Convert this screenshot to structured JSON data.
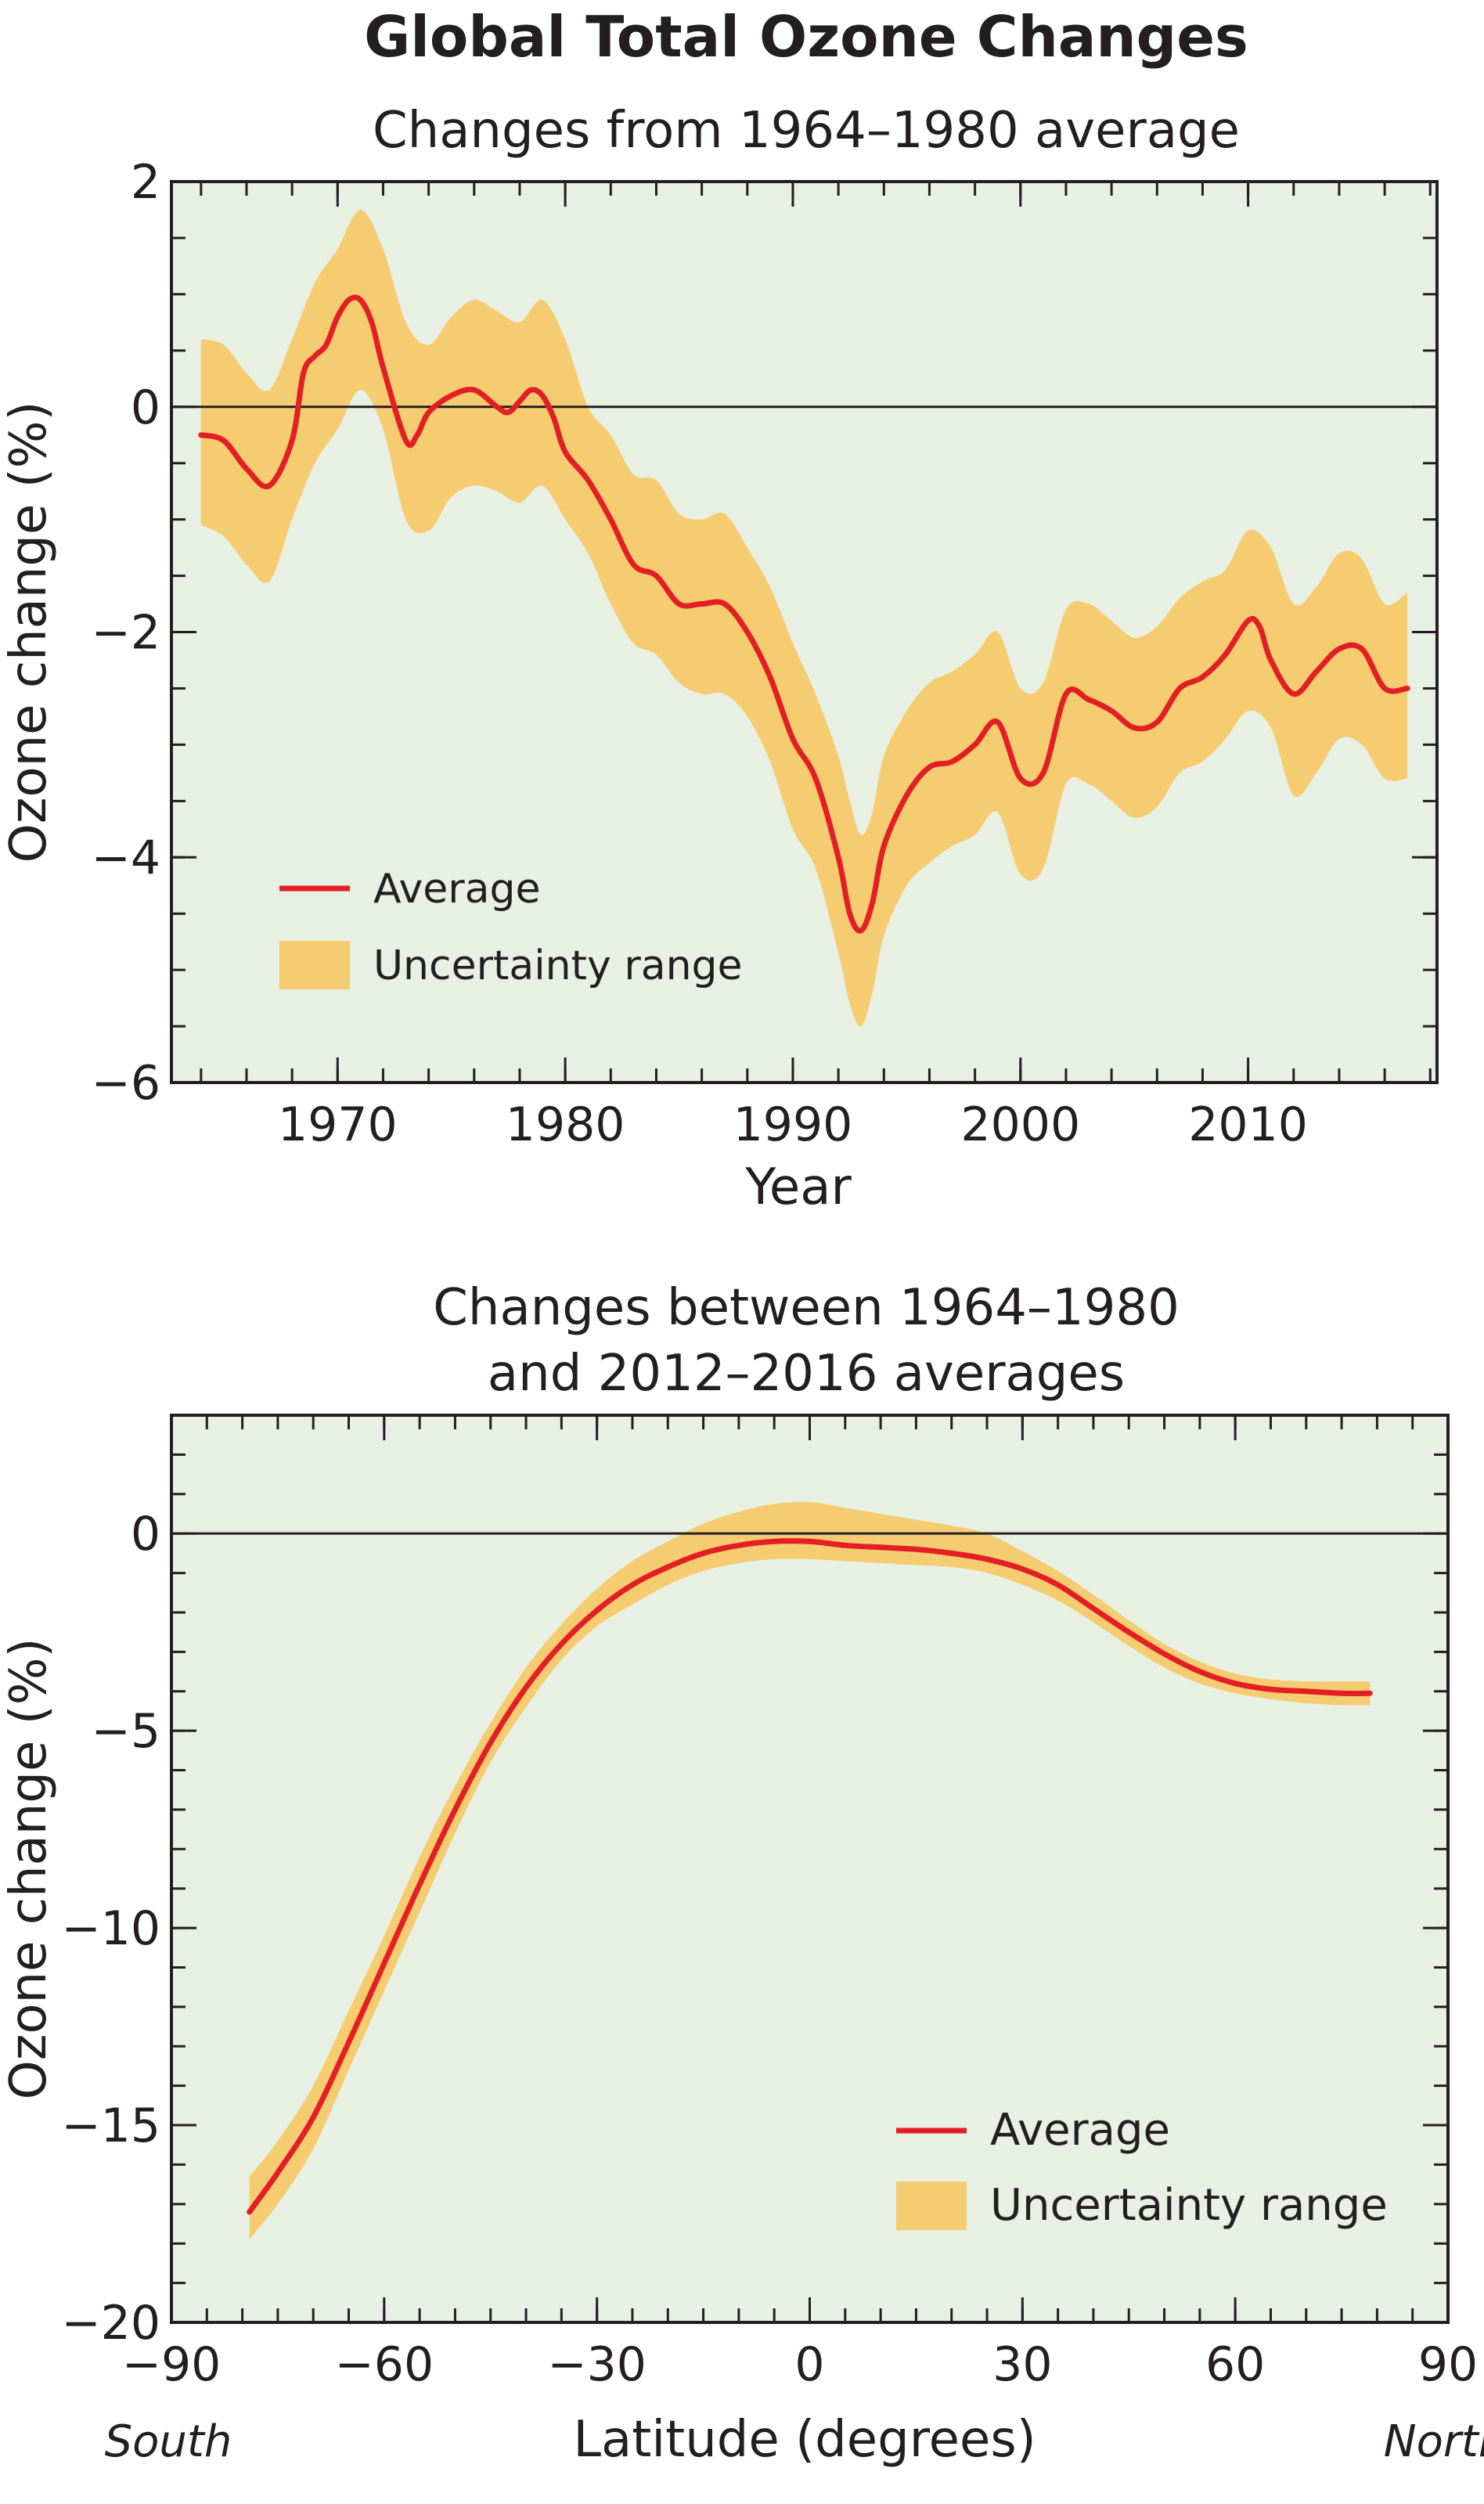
{
  "figure": {
    "title": "Global Total Ozone Changes"
  },
  "colors": {
    "panel_background": "#e8efe3",
    "band": "#f5cc70",
    "line": "#e31f26",
    "axis": "#231f20"
  },
  "chart_data": [
    {
      "type": "line",
      "title": "Changes from 1964–1980 average",
      "xlabel": "Year",
      "ylabel": "Ozone change (%)",
      "xlim": [
        1962.7,
        2018.3
      ],
      "ylim": [
        -6,
        2
      ],
      "x_ticks": [
        1970,
        1980,
        1990,
        2000,
        2010
      ],
      "y_ticks": [
        2,
        0,
        -2,
        -4,
        -6
      ],
      "y_tick_labels": [
        "2",
        "0",
        "−2",
        "−4",
        "−6"
      ],
      "x_minor_step": 2,
      "y_minor_step": 0.5,
      "reference_line_y": 0,
      "grid": false,
      "legend_position": "bottom-left",
      "legend": {
        "line": "Average",
        "band": "Uncertainty range"
      },
      "series": [
        {
          "name": "Average",
          "x": [
            1964.0,
            1965.0,
            1966.0,
            1967.0,
            1968.0,
            1968.5,
            1969.0,
            1969.5,
            1970.0,
            1970.5,
            1971.0,
            1971.5,
            1972.0,
            1973.0,
            1973.5,
            1974.0,
            1975.0,
            1976.0,
            1977.0,
            1977.5,
            1978.0,
            1978.5,
            1979.0,
            1979.5,
            1980.0,
            1981.0,
            1982.0,
            1983.0,
            1984.0,
            1985.0,
            1986.0,
            1987.0,
            1988.0,
            1989.0,
            1990.0,
            1991.0,
            1992.0,
            1992.5,
            1993.0,
            1993.5,
            1994.0,
            1995.0,
            1996.0,
            1997.0,
            1998.0,
            1999.0,
            2000.0,
            2001.0,
            2002.0,
            2003.0,
            2004.0,
            2005.0,
            2006.0,
            2007.0,
            2008.0,
            2009.0,
            2010.0,
            2010.5,
            2011.0,
            2012.0,
            2013.0,
            2014.0,
            2015.0,
            2016.0,
            2017.0
          ],
          "y": [
            -0.25,
            -0.3,
            -0.55,
            -0.7,
            -0.3,
            0.3,
            0.45,
            0.55,
            0.8,
            0.95,
            0.95,
            0.75,
            0.35,
            -0.3,
            -0.25,
            -0.05,
            0.1,
            0.15,
            0.0,
            -0.05,
            0.05,
            0.15,
            0.1,
            -0.1,
            -0.4,
            -0.65,
            -1.0,
            -1.4,
            -1.5,
            -1.75,
            -1.75,
            -1.75,
            -2.0,
            -2.4,
            -2.95,
            -3.3,
            -4.0,
            -4.5,
            -4.65,
            -4.4,
            -3.9,
            -3.45,
            -3.2,
            -3.15,
            -3.0,
            -2.8,
            -3.3,
            -3.25,
            -2.55,
            -2.6,
            -2.7,
            -2.85,
            -2.8,
            -2.5,
            -2.4,
            -2.2,
            -1.9,
            -1.95,
            -2.25,
            -2.55,
            -2.35,
            -2.15,
            -2.15,
            -2.5,
            -2.5
          ]
        },
        {
          "name": "Uncertainty range",
          "x": [
            1964.0,
            1965.0,
            1966.0,
            1967.0,
            1968.0,
            1969.0,
            1970.0,
            1971.0,
            1972.0,
            1973.0,
            1974.0,
            1975.0,
            1976.0,
            1977.0,
            1978.0,
            1979.0,
            1980.0,
            1981.0,
            1982.0,
            1983.0,
            1984.0,
            1985.0,
            1986.0,
            1987.0,
            1988.0,
            1989.0,
            1990.0,
            1991.0,
            1992.0,
            1992.5,
            1993.0,
            1993.5,
            1994.0,
            1995.0,
            1996.0,
            1997.0,
            1998.0,
            1999.0,
            2000.0,
            2001.0,
            2002.0,
            2003.0,
            2004.0,
            2005.0,
            2006.0,
            2007.0,
            2008.0,
            2009.0,
            2010.0,
            2011.0,
            2012.0,
            2013.0,
            2014.0,
            2015.0,
            2016.0,
            2017.0
          ],
          "upper": [
            0.6,
            0.55,
            0.3,
            0.15,
            0.6,
            1.1,
            1.4,
            1.75,
            1.4,
            0.75,
            0.55,
            0.8,
            0.95,
            0.85,
            0.75,
            0.95,
            0.6,
            0.0,
            -0.25,
            -0.6,
            -0.65,
            -0.95,
            -1.0,
            -0.95,
            -1.25,
            -1.6,
            -2.1,
            -2.55,
            -3.1,
            -3.5,
            -3.8,
            -3.6,
            -3.1,
            -2.7,
            -2.45,
            -2.35,
            -2.2,
            -2.0,
            -2.5,
            -2.45,
            -1.8,
            -1.75,
            -1.9,
            -2.05,
            -1.95,
            -1.7,
            -1.55,
            -1.45,
            -1.1,
            -1.25,
            -1.75,
            -1.6,
            -1.3,
            -1.35,
            -1.75,
            -1.65
          ],
          "lower": [
            -1.05,
            -1.15,
            -1.4,
            -1.55,
            -1.0,
            -0.5,
            -0.2,
            0.15,
            -0.2,
            -1.0,
            -1.1,
            -0.8,
            -0.7,
            -0.75,
            -0.85,
            -0.7,
            -1.0,
            -1.3,
            -1.75,
            -2.1,
            -2.2,
            -2.45,
            -2.55,
            -2.55,
            -2.75,
            -3.15,
            -3.75,
            -4.1,
            -4.85,
            -5.3,
            -5.5,
            -5.2,
            -4.7,
            -4.25,
            -4.05,
            -3.9,
            -3.8,
            -3.6,
            -4.15,
            -4.1,
            -3.35,
            -3.35,
            -3.5,
            -3.65,
            -3.55,
            -3.25,
            -3.15,
            -2.95,
            -2.7,
            -2.85,
            -3.45,
            -3.25,
            -2.95,
            -3.0,
            -3.3,
            -3.3
          ]
        }
      ]
    },
    {
      "type": "line",
      "title": "Changes between 1964–1980\nand 2012–2016 averages",
      "xlabel": "Latitude (degrees)",
      "ylabel": "Ozone change (%)",
      "xlim": [
        -90,
        90
      ],
      "ylim": [
        -20,
        3
      ],
      "x_ticks": [
        -90,
        -60,
        -30,
        0,
        30,
        60,
        90
      ],
      "x_tick_labels": [
        "−90",
        "−60",
        "−30",
        "0",
        "30",
        "60",
        "90"
      ],
      "y_ticks": [
        0,
        -5,
        -10,
        -15,
        -20
      ],
      "y_tick_labels": [
        "0",
        "−5",
        "−10",
        "−15",
        "−20"
      ],
      "x_minor_step": 5,
      "y_minor_step": 1,
      "reference_line_y": 0,
      "x_end_labels": {
        "left": "South",
        "right": "North"
      },
      "grid": false,
      "legend_position": "bottom-right",
      "legend": {
        "line": "Average",
        "band": "Uncertainty range"
      },
      "series": [
        {
          "name": "Average",
          "x": [
            -79,
            -75,
            -70,
            -65,
            -60,
            -55,
            -50,
            -45,
            -40,
            -35,
            -30,
            -25,
            -20,
            -15,
            -10,
            -5,
            0,
            5,
            10,
            15,
            20,
            25,
            30,
            35,
            40,
            45,
            50,
            55,
            60,
            65,
            70,
            75,
            79
          ],
          "y": [
            -17.2,
            -16.2,
            -14.8,
            -12.9,
            -10.9,
            -8.9,
            -7.0,
            -5.3,
            -3.9,
            -2.8,
            -1.95,
            -1.3,
            -0.85,
            -0.5,
            -0.3,
            -0.2,
            -0.2,
            -0.3,
            -0.35,
            -0.4,
            -0.5,
            -0.65,
            -0.9,
            -1.3,
            -1.9,
            -2.5,
            -3.05,
            -3.5,
            -3.8,
            -3.95,
            -4.0,
            -4.05,
            -4.05
          ]
        },
        {
          "name": "Uncertainty range",
          "x": [
            -79,
            -75,
            -70,
            -65,
            -60,
            -55,
            -50,
            -45,
            -40,
            -35,
            -30,
            -25,
            -20,
            -15,
            -10,
            -5,
            0,
            5,
            10,
            15,
            20,
            25,
            30,
            35,
            40,
            45,
            50,
            55,
            60,
            65,
            70,
            75,
            79
          ],
          "upper": [
            -16.3,
            -15.4,
            -14.0,
            -12.1,
            -10.2,
            -8.2,
            -6.4,
            -4.8,
            -3.4,
            -2.3,
            -1.4,
            -0.7,
            -0.2,
            0.25,
            0.55,
            0.75,
            0.8,
            0.65,
            0.5,
            0.35,
            0.2,
            0.0,
            -0.45,
            -0.95,
            -1.55,
            -2.2,
            -2.8,
            -3.25,
            -3.55,
            -3.7,
            -3.75,
            -3.75,
            -3.75
          ],
          "lower": [
            -17.9,
            -17.0,
            -15.6,
            -13.6,
            -11.6,
            -9.6,
            -7.6,
            -5.8,
            -4.4,
            -3.2,
            -2.35,
            -1.8,
            -1.3,
            -0.95,
            -0.75,
            -0.65,
            -0.65,
            -0.7,
            -0.75,
            -0.8,
            -0.85,
            -1.0,
            -1.3,
            -1.7,
            -2.25,
            -2.85,
            -3.4,
            -3.8,
            -4.05,
            -4.2,
            -4.3,
            -4.35,
            -4.35
          ]
        }
      ]
    }
  ]
}
